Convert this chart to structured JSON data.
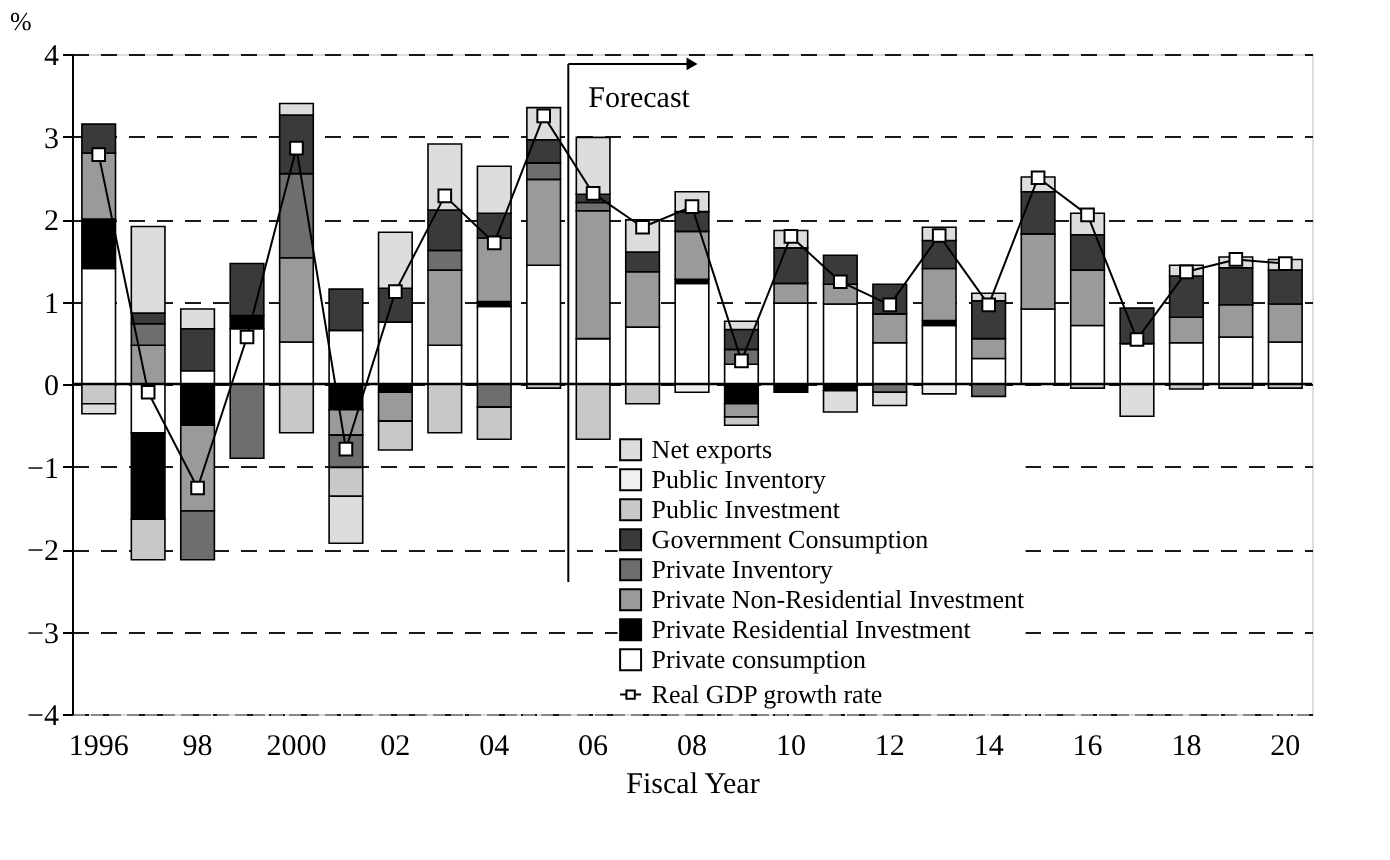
{
  "chart_data": {
    "type": "bar",
    "stacked": true,
    "ylabel": "%",
    "xlabel": "Fiscal Year",
    "categories": [
      "1996",
      null,
      "98",
      null,
      "2000",
      null,
      "02",
      null,
      "04",
      null,
      "06",
      null,
      "08",
      null,
      "10",
      null,
      "12",
      null,
      "14",
      null,
      "16",
      null,
      "18",
      null,
      "20"
    ],
    "series": [
      {
        "name": "Private consumption",
        "color": "#ffffff",
        "values": [
          1.4,
          -0.59,
          0.16,
          0.67,
          0.51,
          0.65,
          0.75,
          0.47,
          0.94,
          1.44,
          0.55,
          0.69,
          1.22,
          0.24,
          0.98,
          0.97,
          0.5,
          0.71,
          0.31,
          0.91,
          0.71,
          0.49,
          0.5,
          0.57,
          0.51
        ]
      },
      {
        "name": "Private Residential Investment",
        "color": "#000000",
        "values": [
          0.6,
          -1.05,
          -0.5,
          0.16,
          null,
          -0.31,
          -0.1,
          null,
          0.06,
          null,
          null,
          null,
          0.05,
          -0.24,
          -0.1,
          -0.08,
          null,
          0.06,
          null,
          null,
          null,
          null,
          null,
          null,
          null
        ]
      },
      {
        "name": "Private Non-Residential Investment",
        "color": "#9a9a9a",
        "values": [
          0.8,
          0.47,
          -1.04,
          null,
          1.02,
          -0.31,
          -0.35,
          0.91,
          0.77,
          1.04,
          1.55,
          0.67,
          0.58,
          -0.16,
          0.24,
          0.24,
          0.35,
          0.63,
          0.24,
          0.91,
          0.67,
          null,
          0.31,
          0.39,
          0.46
        ]
      },
      {
        "name": "Private Inventory",
        "color": "#6e6e6e",
        "values": [
          null,
          0.26,
          -0.59,
          -0.9,
          1.02,
          -0.39,
          null,
          0.24,
          -0.28,
          0.2,
          0.1,
          null,
          null,
          0.18,
          null,
          null,
          -0.1,
          null,
          -0.15,
          null,
          null,
          null,
          null,
          null,
          null
        ]
      },
      {
        "name": "Government Consumption",
        "color": "#3a3a3a",
        "values": [
          0.35,
          0.13,
          0.51,
          0.63,
          0.71,
          0.5,
          0.41,
          0.49,
          0.3,
          0.28,
          0.1,
          0.24,
          0.24,
          0.24,
          0.43,
          0.35,
          0.36,
          0.34,
          0.46,
          0.51,
          0.43,
          0.43,
          0.5,
          0.45,
          0.41
        ]
      },
      {
        "name": "Public Investment",
        "color": "#c8c8c8",
        "values": [
          -0.24,
          -0.49,
          null,
          null,
          -0.59,
          -0.35,
          -0.35,
          -0.59,
          -0.39,
          -0.05,
          -0.67,
          -0.24,
          null,
          -0.1,
          null,
          null,
          null,
          null,
          null,
          null,
          -0.05,
          null,
          -0.06,
          -0.05,
          -0.05
        ]
      },
      {
        "name": "Public Inventory",
        "color": "#f0f0f0",
        "values": [
          null,
          null,
          null,
          null,
          null,
          null,
          null,
          null,
          null,
          null,
          null,
          null,
          -0.1,
          null,
          null,
          null,
          null,
          -0.12,
          null,
          null,
          null,
          null,
          null,
          null,
          null
        ]
      },
      {
        "name": "Net exports",
        "color": "#dddddd",
        "values": [
          -0.12,
          1.05,
          0.24,
          null,
          0.14,
          -0.57,
          0.68,
          0.8,
          0.57,
          0.39,
          0.69,
          0.39,
          0.24,
          0.1,
          0.21,
          -0.26,
          -0.16,
          0.16,
          0.09,
          0.18,
          0.26,
          -0.39,
          0.13,
          0.13,
          0.13
        ]
      },
      {
        "name": "Real GDP growth rate",
        "type": "line",
        "marker": "square",
        "color": "#000000",
        "values": [
          2.78,
          -0.1,
          -1.26,
          0.57,
          2.86,
          -0.79,
          1.12,
          2.28,
          1.71,
          3.25,
          2.31,
          1.9,
          2.15,
          0.28,
          1.79,
          1.24,
          0.96,
          1.8,
          0.96,
          2.5,
          2.05,
          0.54,
          1.36,
          1.51,
          1.46
        ]
      }
    ],
    "ylim": [
      -4,
      4
    ],
    "yticks": [
      -4,
      -3,
      -2,
      -1,
      0,
      1,
      2,
      3,
      4
    ],
    "grid": "y",
    "legend": "bottom",
    "ref_lines": [
      {
        "axis": "y",
        "value": 0
      },
      {
        "axis": "x",
        "value": "06",
        "label": "Forecast"
      }
    ]
  }
}
